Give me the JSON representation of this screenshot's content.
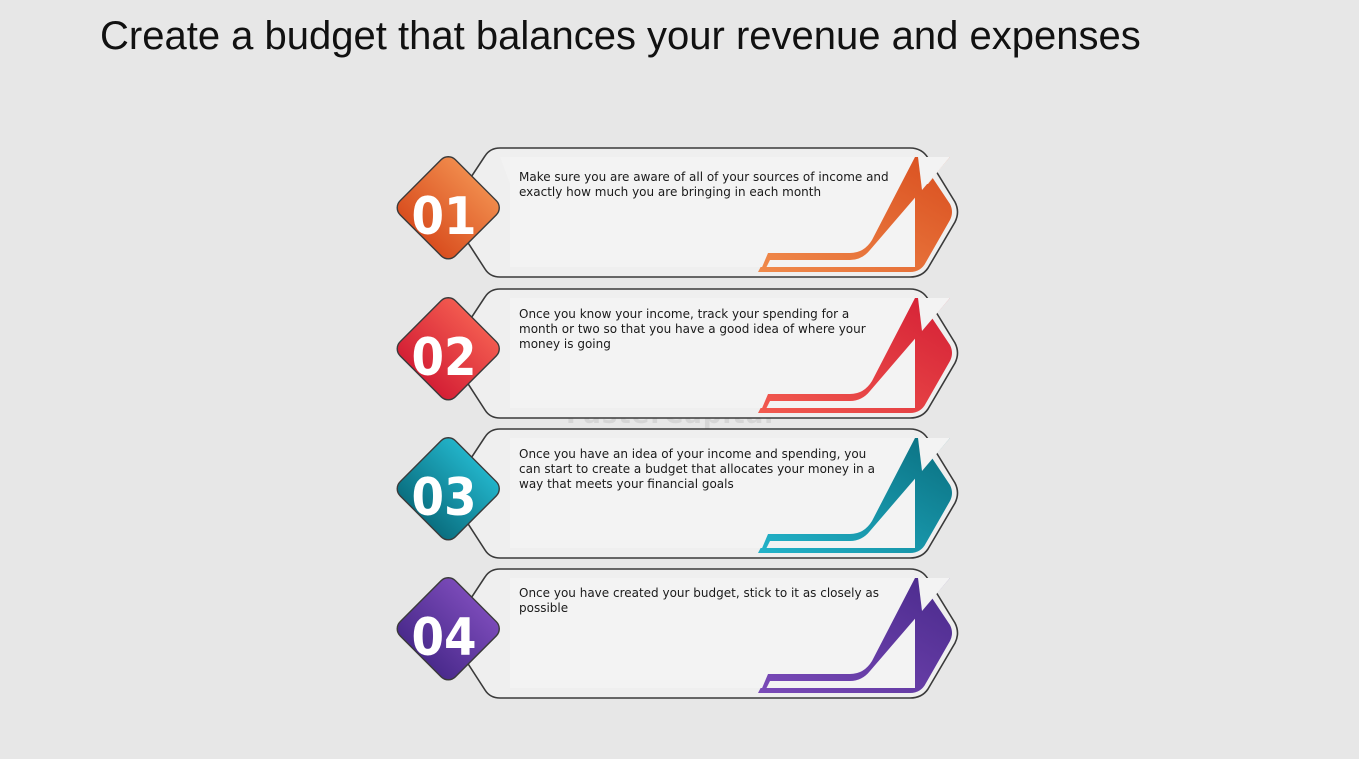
{
  "title": "Create a budget that balances your revenue and expenses",
  "steps": [
    {
      "number": "01",
      "text": "Make sure you are aware of all of your sources of income and exactly how much you are bringing in each month",
      "color_light": "#f08a4b",
      "color_dark": "#d94e1f"
    },
    {
      "number": "02",
      "text": "Once you know your income, track your spending for a month or two so that you have a good idea of where your money is going",
      "color_light": "#f25a4f",
      "color_dark": "#d41f35"
    },
    {
      "number": "03",
      "text": "Once you have an idea of your income and spending, you can start to create a budget that allocates your money in a way that meets your financial goals",
      "color_light": "#22b3c9",
      "color_dark": "#0a6f80"
    },
    {
      "number": "04",
      "text": "Once you have created your budget, stick to it as closely as possible",
      "color_light": "#7a4ab8",
      "color_dark": "#4a2a8c"
    }
  ],
  "watermark": "FasterCapital"
}
